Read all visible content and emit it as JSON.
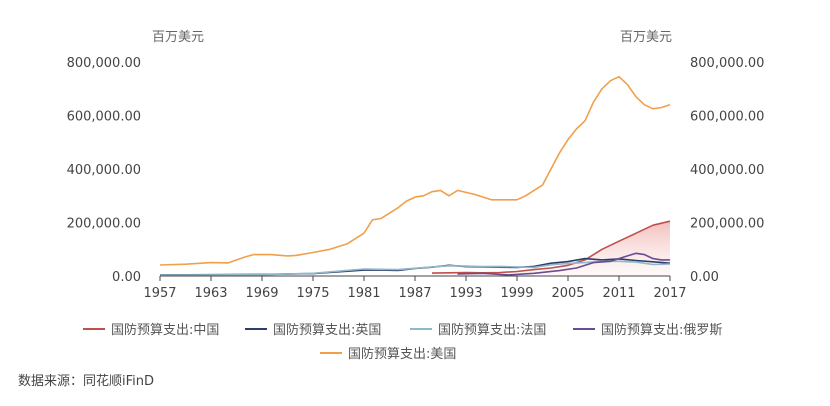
{
  "source": "数据来源：同花顺iFinD",
  "chart_data": {
    "type": "line",
    "left_axis_unit": "百万美元",
    "right_axis_unit": "百万美元",
    "ylim": [
      0,
      800000
    ],
    "yticks": [
      0,
      200000,
      400000,
      600000,
      800000
    ],
    "ytick_labels": [
      "0.00",
      "200,000.00",
      "400,000.00",
      "600,000.00",
      "800,000.00"
    ],
    "xlim": [
      1957,
      2017
    ],
    "xticks": [
      1957,
      1963,
      1969,
      1975,
      1981,
      1987,
      1993,
      1999,
      2005,
      2011,
      2017
    ],
    "grid": false,
    "legend": "bottom",
    "series": [
      {
        "name": "国防预算支出:中国",
        "color": "#c0504d",
        "fill": true,
        "x": [
          1989,
          1991,
          1993,
          1995,
          1997,
          1999,
          2001,
          2003,
          2005,
          2007,
          2009,
          2011,
          2013,
          2015,
          2017
        ],
        "y": [
          11000,
          12000,
          13000,
          12000,
          13000,
          17000,
          24000,
          30000,
          40000,
          60000,
          100000,
          130000,
          160000,
          190000,
          205000
        ]
      },
      {
        "name": "国防预算支出:英国",
        "color": "#2c3e6b",
        "x": [
          1957,
          1963,
          1969,
          1975,
          1981,
          1983,
          1985,
          1987,
          1989,
          1991,
          1993,
          1995,
          1997,
          1999,
          2001,
          2003,
          2005,
          2007,
          2009,
          2011,
          2013,
          2015,
          2017
        ],
        "y": [
          4000,
          5000,
          6000,
          9000,
          22000,
          22000,
          21000,
          28000,
          33000,
          40000,
          35000,
          34000,
          33000,
          32000,
          36000,
          48000,
          54000,
          65000,
          60000,
          64000,
          58000,
          53000,
          48000
        ]
      },
      {
        "name": "国防预算支出:法国",
        "color": "#8fb8c8",
        "x": [
          1957,
          1963,
          1969,
          1975,
          1981,
          1985,
          1989,
          1991,
          1993,
          1995,
          1997,
          1999,
          2001,
          2003,
          2005,
          2007,
          2009,
          2011,
          2013,
          2015,
          2017
        ],
        "y": [
          3000,
          4000,
          5000,
          10000,
          26000,
          24000,
          34000,
          38000,
          37000,
          35000,
          36000,
          34000,
          32000,
          42000,
          47000,
          50000,
          55000,
          55000,
          52000,
          43000,
          45000
        ]
      },
      {
        "name": "国防预算支出:俄罗斯",
        "color": "#6a4c93",
        "x": [
          1992,
          1995,
          1998,
          2001,
          2004,
          2006,
          2008,
          2010,
          2012,
          2013,
          2014,
          2015,
          2016,
          2017
        ],
        "y": [
          8000,
          10000,
          4000,
          10000,
          20000,
          30000,
          50000,
          55000,
          75000,
          85000,
          80000,
          65000,
          60000,
          60000
        ]
      },
      {
        "name": "国防预算支出:美国",
        "color": "#f0a04b",
        "x": [
          1957,
          1960,
          1963,
          1965,
          1967,
          1968,
          1970,
          1972,
          1973,
          1975,
          1977,
          1979,
          1981,
          1982,
          1983,
          1985,
          1986,
          1987,
          1988,
          1989,
          1990,
          1991,
          1992,
          1994,
          1996,
          1998,
          1999,
          2000,
          2001,
          2002,
          2003,
          2004,
          2005,
          2006,
          2007,
          2008,
          2009,
          2010,
          2011,
          2012,
          2013,
          2014,
          2015,
          2016,
          2017
        ],
        "y": [
          41000,
          44000,
          50000,
          49000,
          71000,
          80000,
          80000,
          75000,
          77000,
          88000,
          100000,
          120000,
          160000,
          210000,
          215000,
          255000,
          280000,
          295000,
          300000,
          315000,
          320000,
          300000,
          320000,
          305000,
          285000,
          285000,
          285000,
          300000,
          320000,
          340000,
          400000,
          460000,
          510000,
          550000,
          580000,
          650000,
          700000,
          730000,
          745000,
          715000,
          670000,
          640000,
          625000,
          630000,
          640000
        ]
      }
    ]
  }
}
